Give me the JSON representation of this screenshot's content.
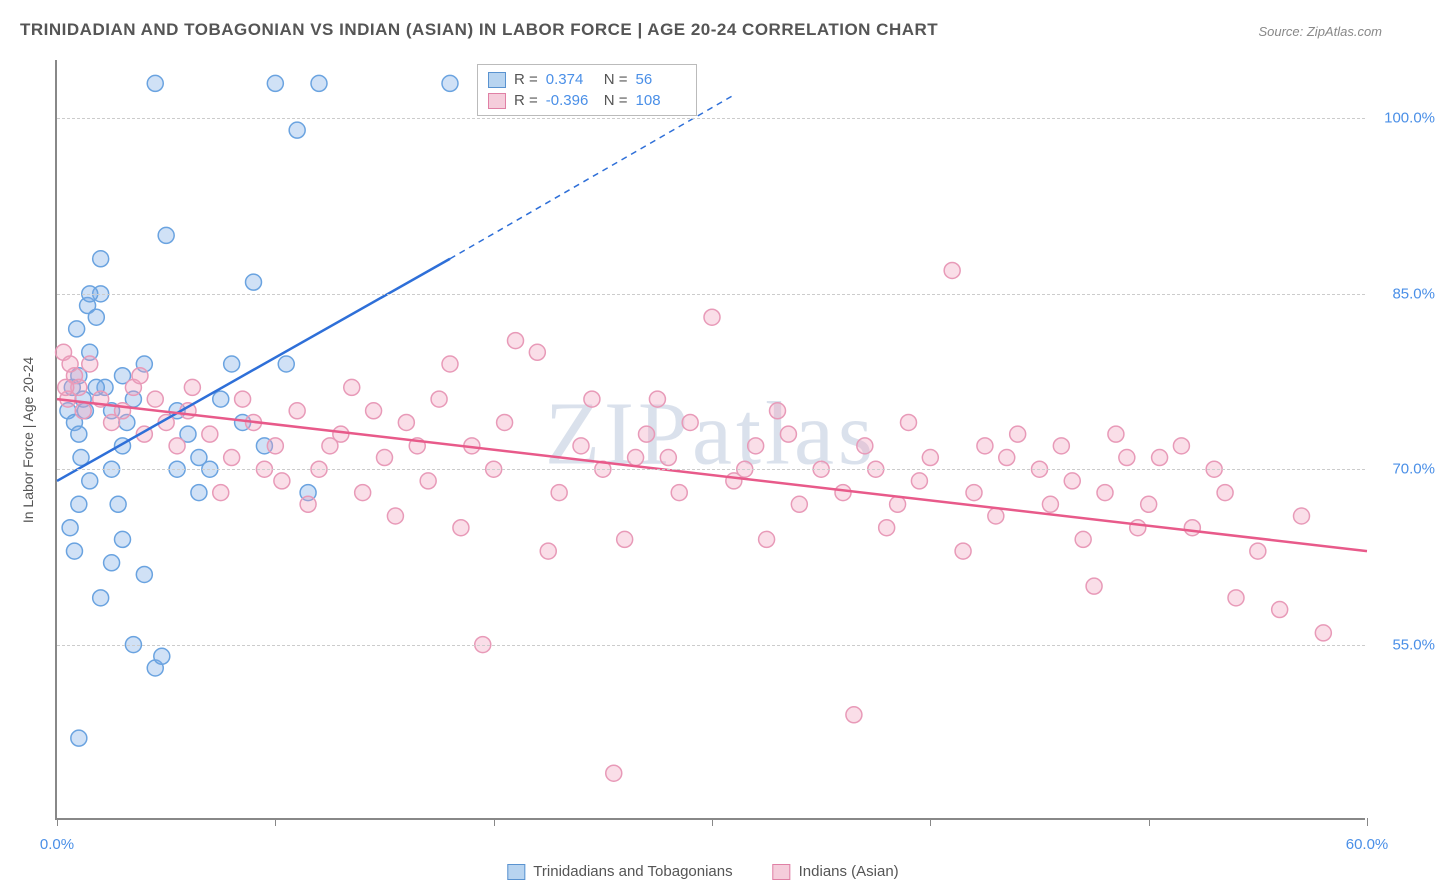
{
  "title": "TRINIDADIAN AND TOBAGONIAN VS INDIAN (ASIAN) IN LABOR FORCE | AGE 20-24 CORRELATION CHART",
  "source": "Source: ZipAtlas.com",
  "y_axis_label": "In Labor Force | Age 20-24",
  "watermark": "ZIPatlas",
  "chart": {
    "type": "scatter",
    "xlim": [
      0,
      60
    ],
    "ylim": [
      40,
      105
    ],
    "x_ticks": [
      0,
      10,
      20,
      30,
      40,
      50,
      60
    ],
    "x_tick_labels": [
      "0.0%",
      "",
      "",
      "",
      "",
      "",
      "60.0%"
    ],
    "y_grid": [
      55,
      70,
      85,
      100
    ],
    "y_tick_labels": [
      "55.0%",
      "70.0%",
      "85.0%",
      "100.0%"
    ],
    "grid_color": "#cccccc",
    "axis_color": "#888888",
    "tick_label_color": "#4a8fe7",
    "label_fontsize": 15,
    "title_fontsize": 17,
    "marker_radius": 8,
    "marker_stroke_width": 1.5,
    "trend_line_width": 2.5,
    "background_color": "#ffffff"
  },
  "series": [
    {
      "name": "Trinidadians and Tobagonians",
      "color_fill": "rgba(120,170,230,0.35)",
      "color_stroke": "#6aa3e0",
      "swatch_fill": "#b8d4f0",
      "swatch_border": "#5a93d0",
      "trend_color": "#2e6fd8",
      "R": "0.374",
      "N": "56",
      "trend_start_x": 0,
      "trend_start_y": 69,
      "trend_solid_end_x": 18,
      "trend_solid_end_y": 88,
      "trend_dash_end_x": 31,
      "trend_dash_end_y": 102,
      "points": [
        [
          0.5,
          75
        ],
        [
          0.7,
          77
        ],
        [
          0.8,
          74
        ],
        [
          1.0,
          78
        ],
        [
          1.2,
          76
        ],
        [
          1.0,
          73
        ],
        [
          1.3,
          75
        ],
        [
          1.5,
          80
        ],
        [
          1.1,
          71
        ],
        [
          0.9,
          82
        ],
        [
          1.4,
          84
        ],
        [
          1.8,
          83
        ],
        [
          2.0,
          85
        ],
        [
          2.2,
          77
        ],
        [
          2.5,
          75
        ],
        [
          3.0,
          78
        ],
        [
          3.2,
          74
        ],
        [
          3.5,
          76
        ],
        [
          4.0,
          79
        ],
        [
          4.5,
          103
        ],
        [
          5.0,
          90
        ],
        [
          5.5,
          75
        ],
        [
          6.0,
          73
        ],
        [
          6.5,
          68
        ],
        [
          7.0,
          70
        ],
        [
          8.0,
          79
        ],
        [
          9.0,
          86
        ],
        [
          10.0,
          103
        ],
        [
          11.0,
          99
        ],
        [
          4.0,
          61
        ],
        [
          3.5,
          55
        ],
        [
          2.0,
          59
        ],
        [
          1.0,
          67
        ],
        [
          0.8,
          63
        ],
        [
          0.6,
          65
        ],
        [
          1.5,
          69
        ],
        [
          2.5,
          70
        ],
        [
          3.0,
          72
        ],
        [
          1.0,
          47
        ],
        [
          4.5,
          53
        ],
        [
          4.8,
          54
        ],
        [
          7.5,
          76
        ],
        [
          8.5,
          74
        ],
        [
          9.5,
          72
        ],
        [
          1.5,
          85
        ],
        [
          2.0,
          88
        ],
        [
          3.0,
          64
        ],
        [
          2.5,
          62
        ],
        [
          1.8,
          77
        ],
        [
          12.0,
          103
        ],
        [
          10.5,
          79
        ],
        [
          11.5,
          68
        ],
        [
          18.0,
          103
        ],
        [
          5.5,
          70
        ],
        [
          6.5,
          71
        ],
        [
          2.8,
          67
        ]
      ]
    },
    {
      "name": "Indians (Asian)",
      "color_fill": "rgba(240,160,190,0.35)",
      "color_stroke": "#e89ab8",
      "swatch_fill": "#f5cddb",
      "swatch_border": "#e080a5",
      "trend_color": "#e85a8a",
      "R": "-0.396",
      "N": "108",
      "trend_start_x": 0,
      "trend_start_y": 76,
      "trend_solid_end_x": 60,
      "trend_solid_end_y": 63,
      "points": [
        [
          0.5,
          76
        ],
        [
          0.8,
          78
        ],
        [
          1.0,
          77
        ],
        [
          1.2,
          75
        ],
        [
          1.5,
          79
        ],
        [
          2.0,
          76
        ],
        [
          2.5,
          74
        ],
        [
          3.0,
          75
        ],
        [
          3.5,
          77
        ],
        [
          4.0,
          73
        ],
        [
          4.5,
          76
        ],
        [
          5.0,
          74
        ],
        [
          5.5,
          72
        ],
        [
          6.0,
          75
        ],
        [
          7.0,
          73
        ],
        [
          8.0,
          71
        ],
        [
          9.0,
          74
        ],
        [
          10.0,
          72
        ],
        [
          11.0,
          75
        ],
        [
          12.0,
          70
        ],
        [
          13.0,
          73
        ],
        [
          14.0,
          68
        ],
        [
          15.0,
          71
        ],
        [
          16.0,
          74
        ],
        [
          17.0,
          69
        ],
        [
          18.0,
          79
        ],
        [
          19.0,
          72
        ],
        [
          20.0,
          70
        ],
        [
          21.0,
          81
        ],
        [
          22.0,
          80
        ],
        [
          23.0,
          68
        ],
        [
          24.0,
          72
        ],
        [
          25.0,
          70
        ],
        [
          26.0,
          64
        ],
        [
          27.0,
          73
        ],
        [
          28.0,
          71
        ],
        [
          29.0,
          74
        ],
        [
          30.0,
          83
        ],
        [
          31.0,
          69
        ],
        [
          32.0,
          72
        ],
        [
          33.0,
          75
        ],
        [
          34.0,
          67
        ],
        [
          35.0,
          70
        ],
        [
          36.0,
          68
        ],
        [
          37.0,
          72
        ],
        [
          38.0,
          65
        ],
        [
          39.0,
          74
        ],
        [
          40.0,
          71
        ],
        [
          41.0,
          87
        ],
        [
          42.0,
          68
        ],
        [
          43.0,
          66
        ],
        [
          44.0,
          73
        ],
        [
          45.0,
          70
        ],
        [
          46.0,
          72
        ],
        [
          47.0,
          64
        ],
        [
          48.0,
          68
        ],
        [
          49.0,
          71
        ],
        [
          50.0,
          67
        ],
        [
          52.0,
          65
        ],
        [
          53.0,
          70
        ],
        [
          54.0,
          59
        ],
        [
          55.0,
          63
        ],
        [
          56.0,
          58
        ],
        [
          57.0,
          66
        ],
        [
          58.0,
          56
        ],
        [
          48.5,
          73
        ],
        [
          8.5,
          76
        ],
        [
          9.5,
          70
        ],
        [
          13.5,
          77
        ],
        [
          14.5,
          75
        ],
        [
          16.5,
          72
        ],
        [
          17.5,
          76
        ],
        [
          19.5,
          55
        ],
        [
          25.5,
          44
        ],
        [
          36.5,
          49
        ],
        [
          18.5,
          65
        ],
        [
          22.5,
          63
        ],
        [
          26.5,
          71
        ],
        [
          32.5,
          64
        ],
        [
          38.5,
          67
        ],
        [
          42.5,
          72
        ],
        [
          46.5,
          69
        ],
        [
          50.5,
          71
        ],
        [
          7.5,
          68
        ],
        [
          11.5,
          67
        ],
        [
          15.5,
          66
        ],
        [
          20.5,
          74
        ],
        [
          24.5,
          76
        ],
        [
          28.5,
          68
        ],
        [
          33.5,
          73
        ],
        [
          37.5,
          70
        ],
        [
          41.5,
          63
        ],
        [
          45.5,
          67
        ],
        [
          49.5,
          65
        ],
        [
          51.5,
          72
        ],
        [
          0.3,
          80
        ],
        [
          0.4,
          77
        ],
        [
          0.6,
          79
        ],
        [
          3.8,
          78
        ],
        [
          6.2,
          77
        ],
        [
          10.3,
          69
        ],
        [
          12.5,
          72
        ],
        [
          27.5,
          76
        ],
        [
          31.5,
          70
        ],
        [
          39.5,
          69
        ],
        [
          43.5,
          71
        ],
        [
          47.5,
          60
        ],
        [
          53.5,
          68
        ]
      ]
    }
  ],
  "stats_legend": {
    "R_label": "R =",
    "N_label": "N ="
  }
}
